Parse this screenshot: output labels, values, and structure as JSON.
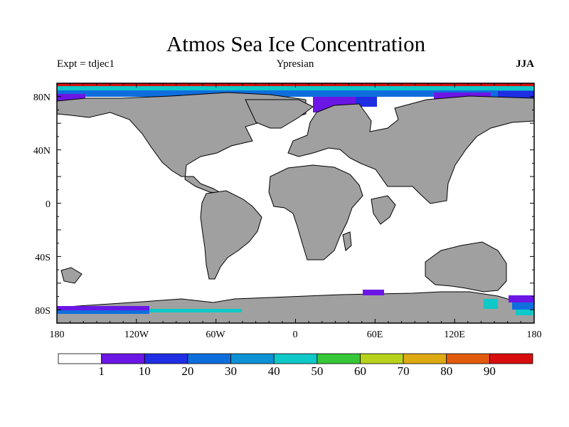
{
  "title": "Atmos Sea Ice Concentration",
  "subtitle_left": "Expt = tdjec1",
  "subtitle_center": "Ypresian",
  "subtitle_right": "JJA",
  "lon_ticks": [
    "180",
    "120W",
    "60W",
    "0",
    "60E",
    "120E",
    "180"
  ],
  "lat_ticks": [
    "80N",
    "40N",
    "0",
    "40S",
    "80S"
  ],
  "colorbar": {
    "colors": [
      "#ffffff",
      "#6c16e6",
      "#1f2ee3",
      "#0f6ede",
      "#0d92d6",
      "#0fc8c8",
      "#37c83a",
      "#b6d21a",
      "#deaa12",
      "#e25a0c",
      "#d80e0e"
    ],
    "labels": [
      "1",
      "10",
      "20",
      "30",
      "40",
      "50",
      "60",
      "70",
      "80",
      "90"
    ]
  },
  "colors": {
    "land": "#a0a0a0",
    "ocean": "#ffffff",
    "ice_low": "#6c16e6",
    "ice_mid": "#0f6ede",
    "ice_high": "#0fc8c8"
  }
}
